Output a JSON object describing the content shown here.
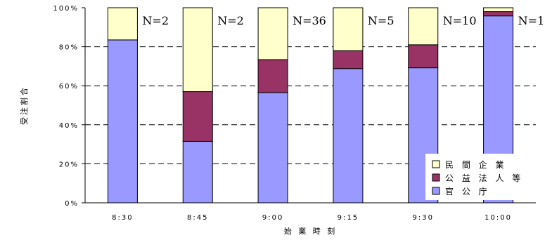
{
  "chart_data": {
    "type": "bar",
    "stacked": true,
    "percent": true,
    "xlabel": "始 業 時 刻",
    "ylabel": "受注割合",
    "categories": [
      "8:30",
      "8:45",
      "9:00",
      "9:15",
      "9:30",
      "10:00"
    ],
    "y_ticks": [
      "0%",
      "20%",
      "40%",
      "60%",
      "80%",
      "100%"
    ],
    "ylim": [
      0,
      100
    ],
    "grid": "horizontal-dashed",
    "legend_position": "bottom-right",
    "annotations": [
      "N=2",
      "N=2",
      "N=36",
      "N=5",
      "N=10",
      "N=1"
    ],
    "series": [
      {
        "name": "官 公 庁",
        "color": "#9999ff",
        "values": [
          83.5,
          31.5,
          56.5,
          68.8,
          69.2,
          95.8
        ]
      },
      {
        "name": "公 益 法 人 等",
        "color": "#993366",
        "values": [
          0,
          25.5,
          16.9,
          9.2,
          11.8,
          2.2
        ]
      },
      {
        "name": "民 間 企 業",
        "color": "#ffffcc",
        "values": [
          16.5,
          43.0,
          26.6,
          22.0,
          19.0,
          2.0
        ]
      }
    ],
    "legend_order": [
      "民 間 企 業",
      "公 益 法 人 等",
      "官 公 庁"
    ]
  }
}
